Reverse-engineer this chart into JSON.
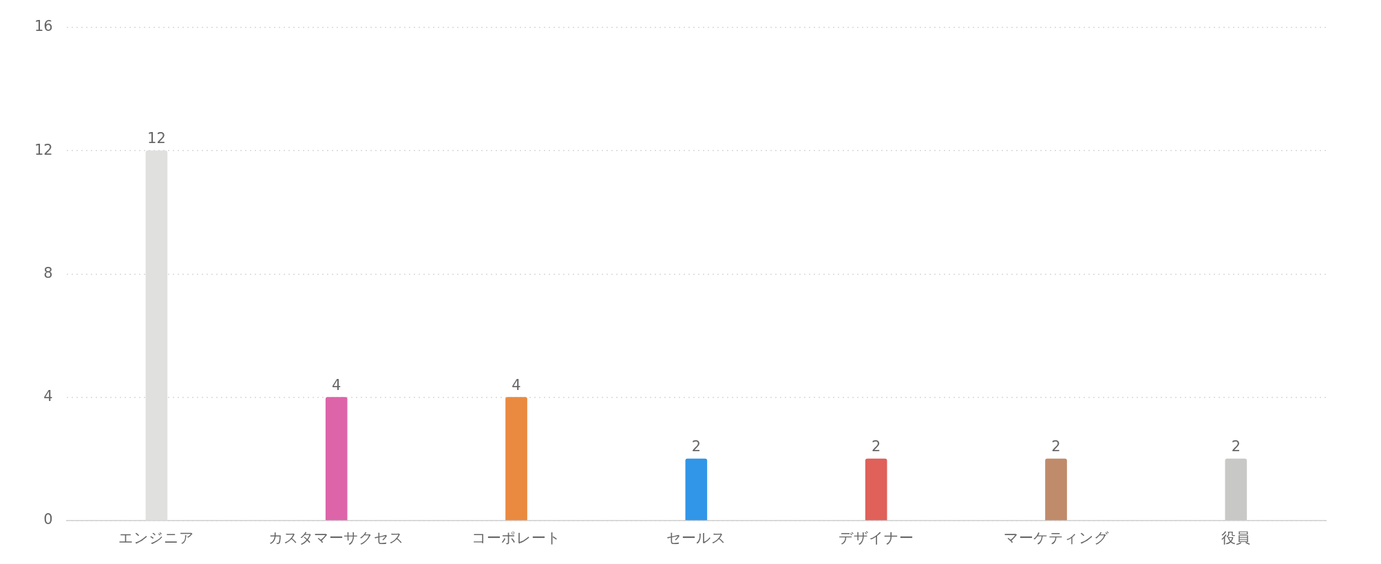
{
  "chart_data": {
    "type": "bar",
    "categories": [
      "エンジニア",
      "カスタマーサクセス",
      "コーポレート",
      "セールス",
      "デザイナー",
      "マーケティング",
      "役員"
    ],
    "values": [
      12,
      4,
      4,
      2,
      2,
      2,
      2
    ],
    "colors": [
      "#e0e0df",
      "#dd64a8",
      "#ea8a40",
      "#3196e8",
      "#e0605a",
      "#c08b6a",
      "#c8c8c6"
    ],
    "ylim": [
      0,
      16
    ],
    "yticks": [
      0,
      4,
      8,
      12,
      16
    ],
    "grid": "y",
    "data_labels": true,
    "legend": false
  }
}
